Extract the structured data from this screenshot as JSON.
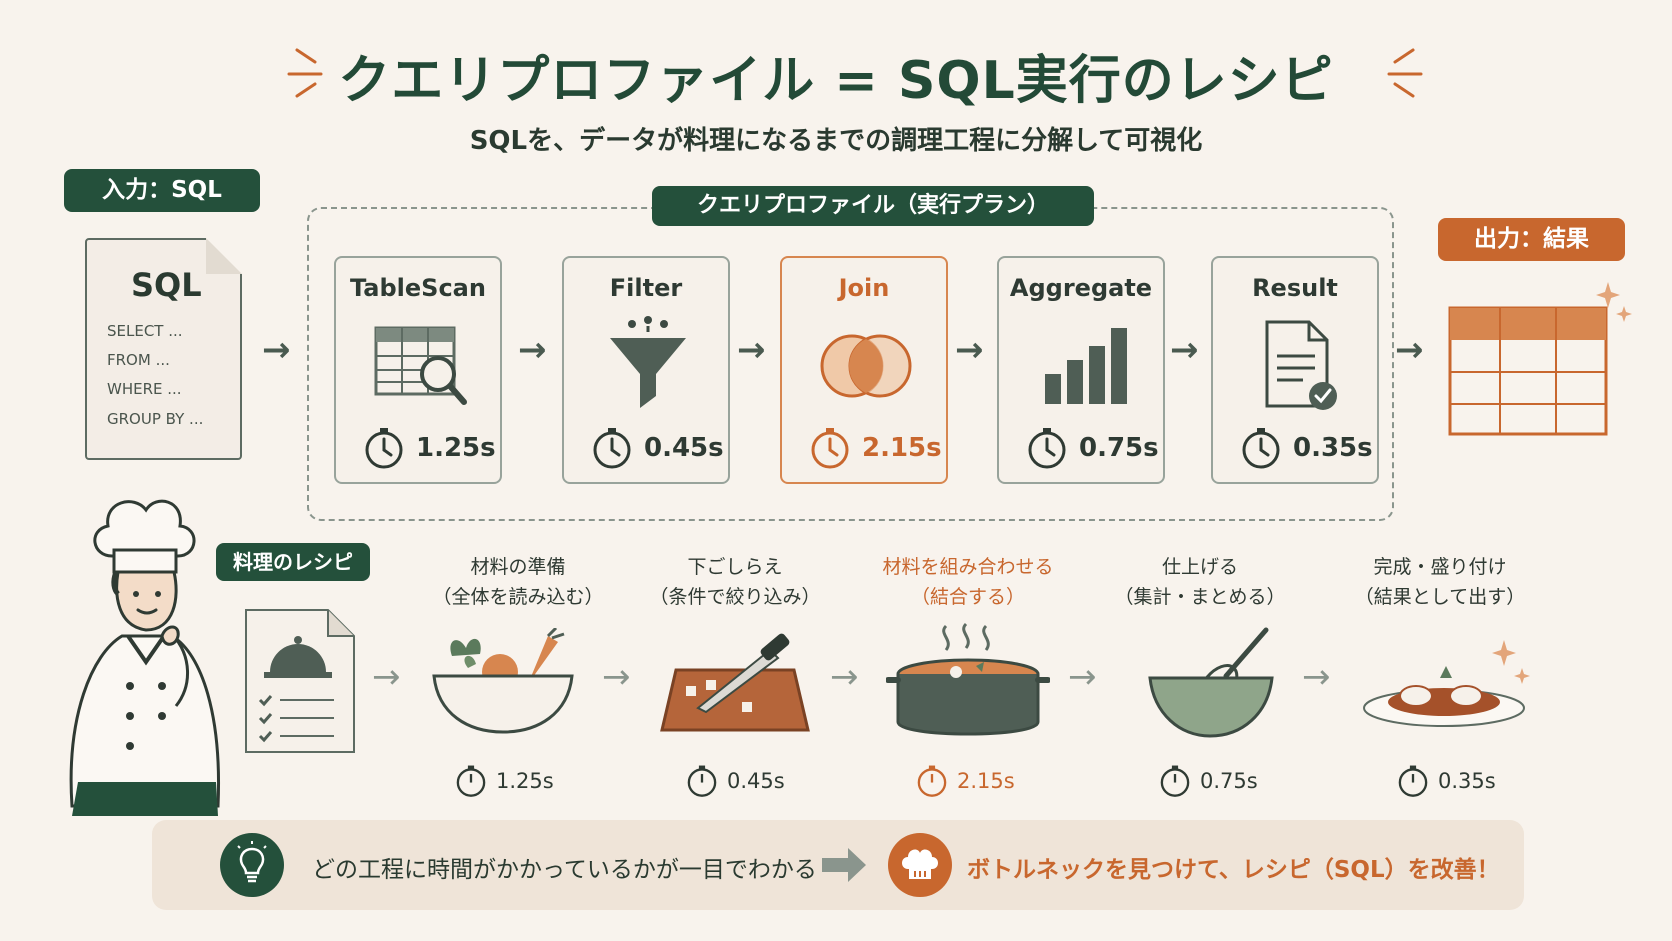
{
  "header": {
    "title": "クエリプロファイル = SQL実行のレシピ",
    "subtitle": "SQLを、データが料理になるまでの調理工程に分解して可視化"
  },
  "input": {
    "label": "入力：SQL",
    "doc_title": "SQL",
    "lines": [
      "SELECT ...",
      "FROM ...",
      "WHERE ...",
      "GROUP BY ..."
    ]
  },
  "plan": {
    "label": "クエリプロファイル（実行プラン）",
    "steps": [
      {
        "label": "TableScan",
        "time": "1.25s",
        "icon": "table-search-icon"
      },
      {
        "label": "Filter",
        "time": "0.45s",
        "icon": "funnel-icon"
      },
      {
        "label": "Join",
        "time": "2.15s",
        "icon": "venn-diagram-icon"
      },
      {
        "label": "Aggregate",
        "time": "0.75s",
        "icon": "bar-chart-icon"
      },
      {
        "label": "Result",
        "time": "0.35s",
        "icon": "document-check-icon"
      }
    ]
  },
  "output": {
    "label": "出力：結果"
  },
  "recipe": {
    "label": "料理のレシピ",
    "steps": [
      {
        "line1": "材料の準備",
        "line2": "（全体を読み込む）",
        "time": "1.25s",
        "icon": "vegetable-bowl-icon"
      },
      {
        "line1": "下ごしらえ",
        "line2": "（条件で絞り込み）",
        "time": "0.45s",
        "icon": "cutting-board-icon"
      },
      {
        "line1": "材料を組み合わせる",
        "line2": "（結合する）",
        "time": "2.15s",
        "icon": "cooking-pot-icon"
      },
      {
        "line1": "仕上げる",
        "line2": "（集計・まとめる）",
        "time": "0.75s",
        "icon": "whisk-bowl-icon"
      },
      {
        "line1": "完成・盛り付け",
        "line2": "（結果として出す）",
        "time": "0.35s",
        "icon": "plated-dish-icon"
      }
    ]
  },
  "footer": {
    "insight": "どの工程に時間がかかっているかが一目でわかる",
    "action": "ボトルネックを見つけて、レシピ（SQL）を改善！"
  },
  "colors": {
    "accent": "#c8672e",
    "primary": "#24503b",
    "background": "#f8f3ed"
  }
}
